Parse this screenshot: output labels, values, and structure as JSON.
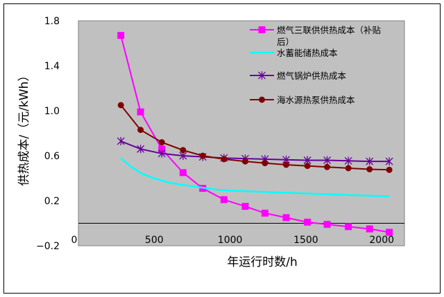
{
  "chart_data": {
    "type": "line",
    "xlabel": "年运行时数/h",
    "ylabel": "供热成本/（元/kWh）",
    "xlim": [
      0,
      2150
    ],
    "ylim": [
      -0.2,
      1.8
    ],
    "x_ticks": [
      "500",
      "1000",
      "1500",
      "2000"
    ],
    "x_tick_values": [
      500,
      1000,
      1500,
      2000
    ],
    "x_origin_label": "0",
    "y_ticks": [
      "1.8",
      "1.4",
      "1.0",
      "0.6",
      "0.2",
      "−0.2"
    ],
    "y_tick_values": [
      1.8,
      1.4,
      1.0,
      0.6,
      0.2,
      -0.2
    ],
    "background": "#c0c0c0",
    "legend_position": "top-right",
    "series": [
      {
        "name": "燃气三联供供热成本（补贴",
        "name_line2": "后）",
        "color": "#ff00ff",
        "marker": "square",
        "x": [
          280,
          410,
          550,
          690,
          820,
          960,
          1100,
          1230,
          1370,
          1510,
          1640,
          1780,
          1920,
          2050
        ],
        "y": [
          1.67,
          0.99,
          0.66,
          0.45,
          0.31,
          0.21,
          0.15,
          0.09,
          0.05,
          0.01,
          -0.01,
          -0.03,
          -0.05,
          -0.08
        ]
      },
      {
        "name": "水蓄能储热成本",
        "color": "#00ffff",
        "marker": "none",
        "x": [
          280,
          350,
          420,
          500,
          600,
          700,
          800,
          900,
          1000,
          1200,
          1400,
          1600,
          1800,
          2050
        ],
        "y": [
          0.58,
          0.5,
          0.44,
          0.4,
          0.36,
          0.34,
          0.32,
          0.3,
          0.29,
          0.28,
          0.27,
          0.26,
          0.25,
          0.24
        ]
      },
      {
        "name": "燃气锅炉供热成本",
        "color": "#660099",
        "marker": "star",
        "x": [
          280,
          410,
          550,
          690,
          820,
          960,
          1100,
          1230,
          1370,
          1510,
          1640,
          1780,
          1920,
          2050
        ],
        "y": [
          0.73,
          0.66,
          0.62,
          0.6,
          0.59,
          0.58,
          0.575,
          0.57,
          0.565,
          0.56,
          0.56,
          0.555,
          0.55,
          0.55
        ]
      },
      {
        "name": "海水源热泵供热成本",
        "color": "#800000",
        "marker": "circle",
        "x": [
          280,
          410,
          550,
          690,
          820,
          960,
          1100,
          1230,
          1370,
          1510,
          1640,
          1780,
          1920,
          2050
        ],
        "y": [
          1.05,
          0.83,
          0.72,
          0.65,
          0.6,
          0.57,
          0.55,
          0.535,
          0.52,
          0.51,
          0.5,
          0.49,
          0.48,
          0.475
        ]
      }
    ]
  }
}
